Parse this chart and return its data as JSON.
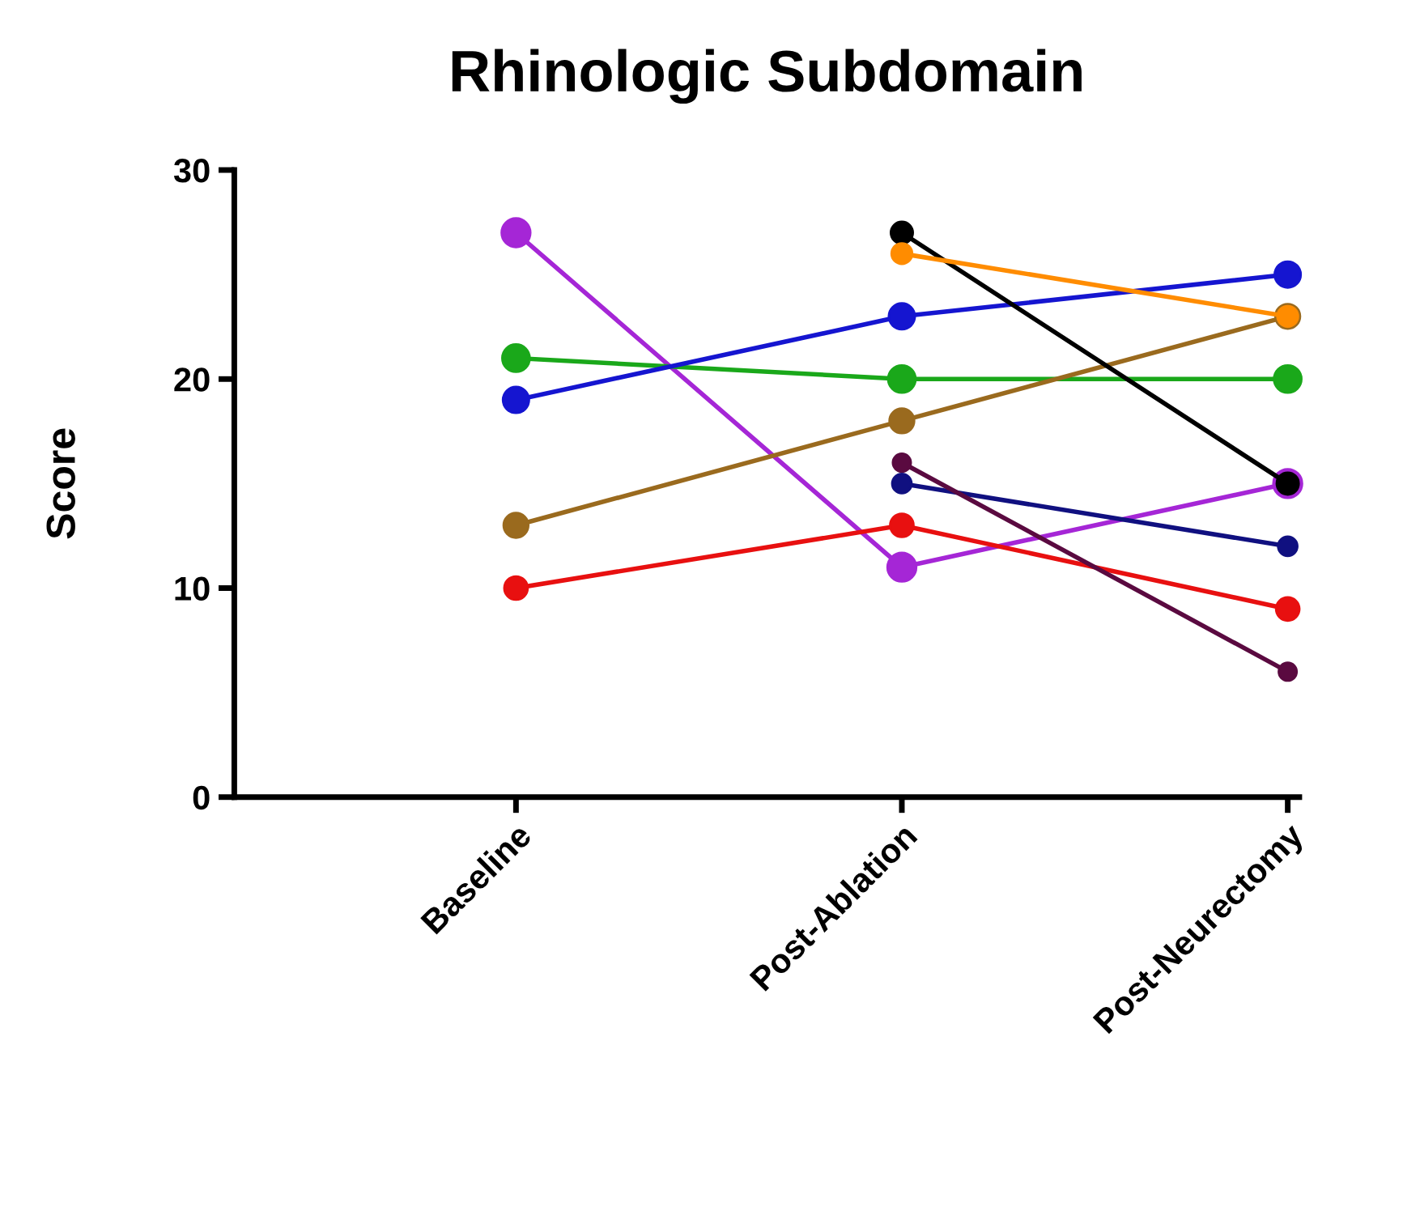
{
  "chart_data": {
    "type": "line",
    "title": "Rhinologic Subdomain",
    "ylabel": "Score",
    "categories": [
      "Baseline",
      "Post-Ablation",
      "Post-Neurectomy"
    ],
    "series": [
      {
        "color": "#a526d6",
        "values": [
          27,
          11,
          15
        ]
      },
      {
        "color": "#1aa81a",
        "values": [
          21,
          20,
          20
        ]
      },
      {
        "color": "#1515d0",
        "values": [
          19,
          23,
          25
        ]
      },
      {
        "color": "#9a6a1e",
        "values": [
          13,
          18,
          23
        ]
      },
      {
        "color": "#e81010",
        "values": [
          10,
          13,
          9
        ]
      },
      {
        "color": "#000000",
        "values": [
          null,
          27,
          15
        ]
      },
      {
        "color": "#ff8c00",
        "values": [
          null,
          26,
          23
        ]
      },
      {
        "color": "#101080",
        "values": [
          null,
          15,
          12
        ]
      },
      {
        "color": "#5a0a40",
        "values": [
          null,
          16,
          6
        ]
      }
    ],
    "ylim": [
      0,
      30
    ],
    "yticks": [
      0,
      10,
      20,
      30
    ],
    "grid": false,
    "legend": false,
    "marker": "circle",
    "line_style": "solid"
  }
}
